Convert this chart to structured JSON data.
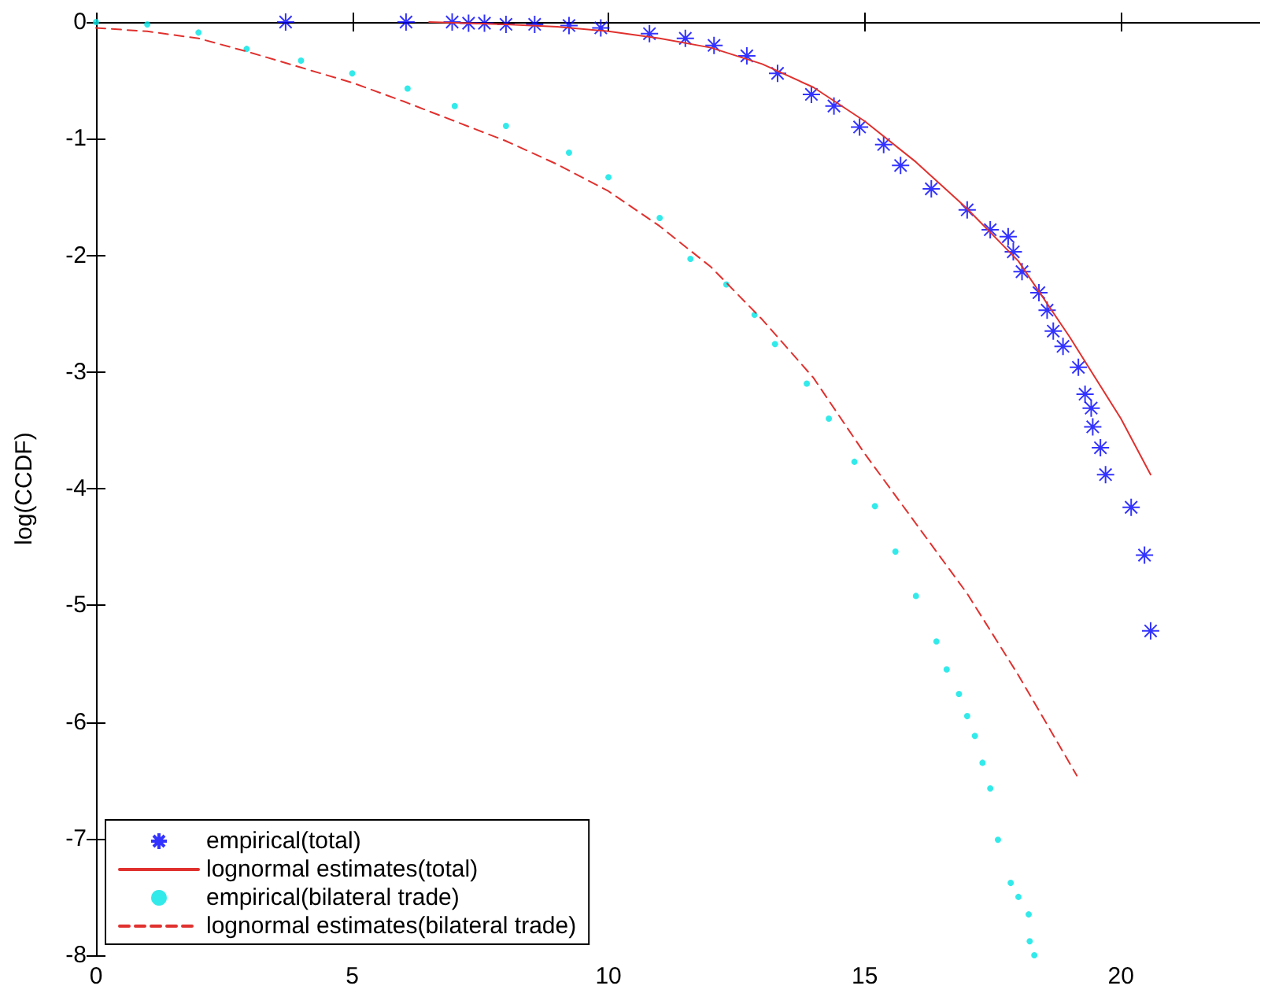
{
  "chart_data": {
    "type": "line",
    "ylabel": "log(CCDF)",
    "xlim": [
      0,
      22.7
    ],
    "xticks": [
      0,
      5,
      10,
      15,
      20
    ],
    "ylim": [
      -8,
      0
    ],
    "yticks": [
      -8,
      -7,
      -6,
      -5,
      -4,
      -3,
      -2,
      -1,
      0
    ],
    "grid": false,
    "legend": "bottom left",
    "series": [
      {
        "name": "empirical(total)",
        "type": "scatter",
        "marker": "cross",
        "color": "#0000ff",
        "x": [
          3.7,
          6.05,
          6.95,
          7.27,
          7.58,
          8.0,
          8.56,
          9.23,
          9.85,
          10.8,
          11.5,
          12.06,
          12.7,
          13.3,
          13.96,
          14.4,
          14.9,
          15.37,
          15.7,
          16.3,
          17.0,
          17.45,
          17.8,
          17.9,
          18.07,
          18.4,
          18.56,
          18.68,
          18.87,
          19.17,
          19.3,
          19.42,
          19.45,
          19.6,
          19.7,
          20.2,
          20.46,
          20.58
        ],
        "values": [
          0,
          0,
          0,
          -0.01,
          -0.01,
          -0.02,
          -0.02,
          -0.03,
          -0.05,
          -0.1,
          -0.14,
          -0.2,
          -0.29,
          -0.44,
          -0.62,
          -0.72,
          -0.9,
          -1.05,
          -1.23,
          -1.43,
          -1.61,
          -1.78,
          -1.84,
          -1.97,
          -2.14,
          -2.32,
          -2.47,
          -2.65,
          -2.78,
          -2.96,
          -3.19,
          -3.31,
          -3.47,
          -3.65,
          -3.88,
          -4.16,
          -4.57,
          -5.22
        ]
      },
      {
        "name": "lognormal estimates(total)",
        "marker": "none",
        "line_style": "solid",
        "color": "#e0312e",
        "x": [
          6.5,
          8,
          9,
          10,
          11,
          12,
          13,
          14,
          15,
          16,
          17,
          18,
          19,
          20,
          20.58
        ],
        "values": [
          0,
          -0.02,
          -0.04,
          -0.08,
          -0.14,
          -0.22,
          -0.36,
          -0.56,
          -0.85,
          -1.2,
          -1.6,
          -2.05,
          -2.7,
          -3.4,
          -3.88
        ]
      },
      {
        "name": "empirical(bilateral trade)",
        "type": "scatter",
        "marker": "circle",
        "color": "#00e5e5",
        "x": [
          0,
          1,
          2,
          2.94,
          4,
          5,
          6.08,
          7,
          8,
          9.23,
          10,
          11,
          11.6,
          12.3,
          12.85,
          13.25,
          13.87,
          14.3,
          14.8,
          15.2,
          15.6,
          16.0,
          16.4,
          16.6,
          16.84,
          17.0,
          17.15,
          17.3,
          17.45,
          17.6,
          17.85,
          18.0,
          18.2,
          18.22,
          18.31
        ],
        "values": [
          0,
          -0.02,
          -0.09,
          -0.23,
          -0.33,
          -0.44,
          -0.57,
          -0.72,
          -0.89,
          -1.12,
          -1.33,
          -1.68,
          -2.03,
          -2.25,
          -2.51,
          -2.76,
          -3.1,
          -3.4,
          -3.77,
          -4.15,
          -4.54,
          -4.92,
          -5.31,
          -5.55,
          -5.76,
          -5.95,
          -6.12,
          -6.35,
          -6.57,
          -7.01,
          -7.38,
          -7.5,
          -7.65,
          -7.88,
          -8.0
        ]
      },
      {
        "name": "lognormal estimates(bilateral trade)",
        "marker": "none",
        "line_style": "dashed",
        "color": "#e0312e",
        "x": [
          0,
          1,
          2,
          3,
          4,
          5,
          6,
          7,
          8,
          9,
          10,
          11,
          12,
          13,
          14,
          15,
          16,
          17,
          18,
          19.14
        ],
        "values": [
          -0.05,
          -0.08,
          -0.14,
          -0.26,
          -0.39,
          -0.52,
          -0.68,
          -0.85,
          -1.02,
          -1.22,
          -1.45,
          -1.75,
          -2.1,
          -2.55,
          -3.05,
          -3.7,
          -4.3,
          -4.9,
          -5.6,
          -6.46
        ]
      }
    ]
  }
}
